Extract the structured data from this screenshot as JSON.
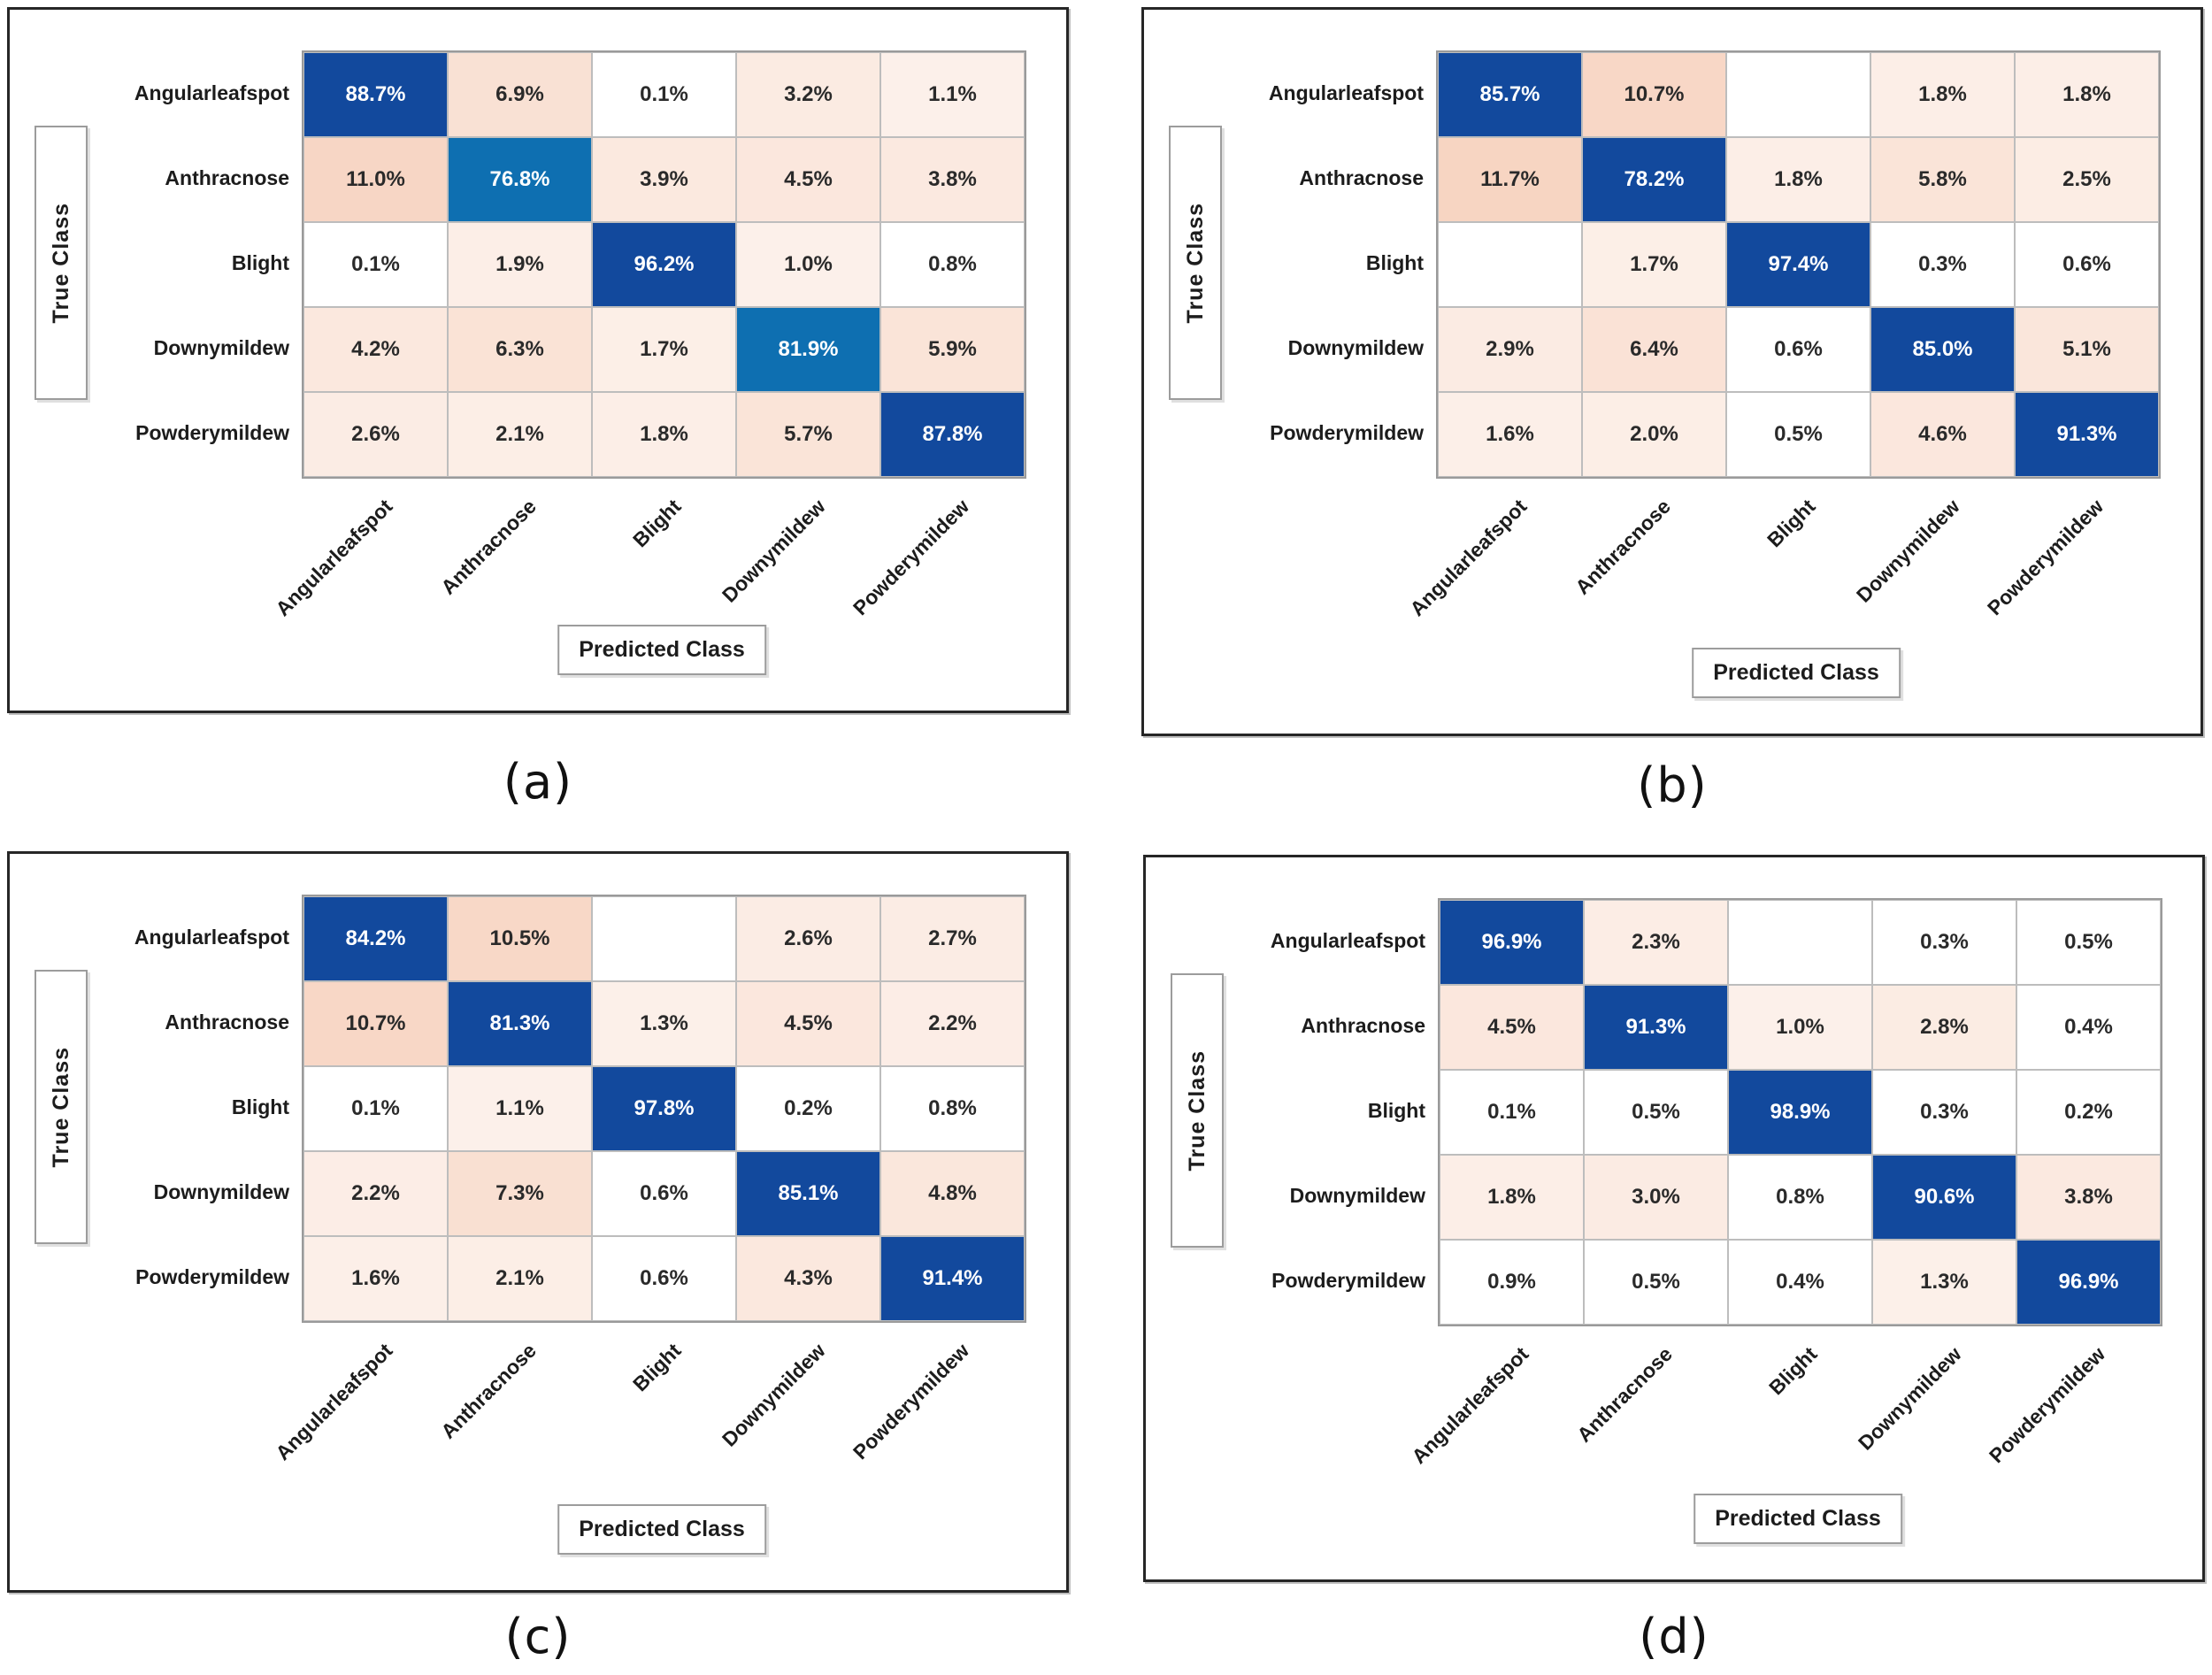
{
  "figure": {
    "axis_labels": {
      "y": "True Class",
      "x": "Predicted Class"
    },
    "classes": [
      "Angularleafspot",
      "Anthracnose",
      "Blight",
      "Downymildew",
      "Powderymildew"
    ],
    "value_unit": "%",
    "palette": {
      "diag_dark": "#12499d",
      "diag_medium": "#0e6fb1",
      "off_diag_max": "#f6cfba",
      "off_diag_text": "#2a2a2a",
      "diag_text": "#ffffff",
      "cell_border": "#bdbdbd",
      "panel_border": "#262626"
    }
  },
  "chart_data": [
    {
      "type": "heatmap",
      "id": "a",
      "caption": "(a)",
      "title": "",
      "xlabel": "Predicted Class",
      "ylabel": "True Class",
      "categories": [
        "Angularleafspot",
        "Anthracnose",
        "Blight",
        "Downymildew",
        "Powderymildew"
      ],
      "rows": [
        [
          88.7,
          6.9,
          0.1,
          3.2,
          1.1
        ],
        [
          11.0,
          76.8,
          3.9,
          4.5,
          3.8
        ],
        [
          0.1,
          1.9,
          96.2,
          1.0,
          0.8
        ],
        [
          4.2,
          6.3,
          1.7,
          81.9,
          5.9
        ],
        [
          2.6,
          2.1,
          1.8,
          5.7,
          87.8
        ]
      ],
      "diag_shade": [
        "dark",
        "medium",
        "dark",
        "medium",
        "dark"
      ]
    },
    {
      "type": "heatmap",
      "id": "b",
      "caption": "(b)",
      "title": "",
      "xlabel": "Predicted Class",
      "ylabel": "True Class",
      "categories": [
        "Angularleafspot",
        "Anthracnose",
        "Blight",
        "Downymildew",
        "Powderymildew"
      ],
      "rows": [
        [
          85.7,
          10.7,
          null,
          1.8,
          1.8
        ],
        [
          11.7,
          78.2,
          1.8,
          5.8,
          2.5
        ],
        [
          null,
          1.7,
          97.4,
          0.3,
          0.6
        ],
        [
          2.9,
          6.4,
          0.6,
          85.0,
          5.1
        ],
        [
          1.6,
          2.0,
          0.5,
          4.6,
          91.3
        ]
      ],
      "diag_shade": [
        "dark",
        "dark",
        "dark",
        "dark",
        "dark"
      ]
    },
    {
      "type": "heatmap",
      "id": "c",
      "caption": "(c)",
      "title": "",
      "xlabel": "Predicted Class",
      "ylabel": "True Class",
      "categories": [
        "Angularleafspot",
        "Anthracnose",
        "Blight",
        "Downymildew",
        "Powderymildew"
      ],
      "rows": [
        [
          84.2,
          10.5,
          null,
          2.6,
          2.7
        ],
        [
          10.7,
          81.3,
          1.3,
          4.5,
          2.2
        ],
        [
          0.1,
          1.1,
          97.8,
          0.2,
          0.8
        ],
        [
          2.2,
          7.3,
          0.6,
          85.1,
          4.8
        ],
        [
          1.6,
          2.1,
          0.6,
          4.3,
          91.4
        ]
      ],
      "diag_shade": [
        "dark",
        "dark",
        "dark",
        "dark",
        "dark"
      ]
    },
    {
      "type": "heatmap",
      "id": "d",
      "caption": "(d)",
      "title": "",
      "xlabel": "Predicted Class",
      "ylabel": "True Class",
      "categories": [
        "Angularleafspot",
        "Anthracnose",
        "Blight",
        "Downymildew",
        "Powderymildew"
      ],
      "rows": [
        [
          96.9,
          2.3,
          null,
          0.3,
          0.5
        ],
        [
          4.5,
          91.3,
          1.0,
          2.8,
          0.4
        ],
        [
          0.1,
          0.5,
          98.9,
          0.3,
          0.2
        ],
        [
          1.8,
          3.0,
          0.8,
          90.6,
          3.8
        ],
        [
          0.9,
          0.5,
          0.4,
          1.3,
          96.9
        ]
      ],
      "diag_shade": [
        "dark",
        "dark",
        "dark",
        "dark",
        "dark"
      ]
    }
  ]
}
